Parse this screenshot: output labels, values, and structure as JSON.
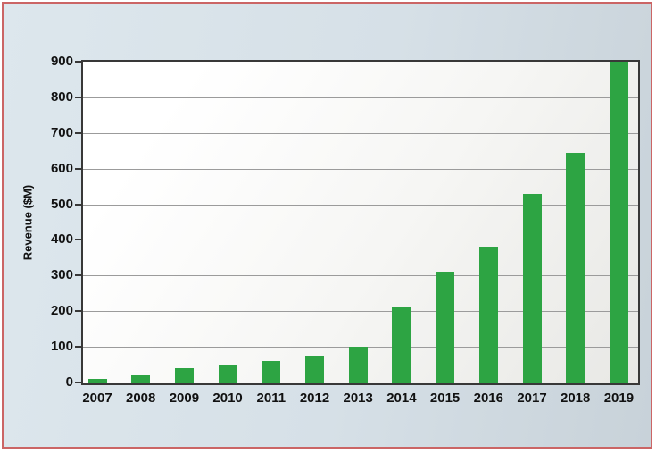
{
  "chart_data": {
    "type": "bar",
    "title": "",
    "ylabel": "Revenue ($M)",
    "xlabel": "",
    "categories": [
      "2007",
      "2008",
      "2009",
      "2010",
      "2011",
      "2012",
      "2013",
      "2014",
      "2015",
      "2016",
      "2017",
      "2018",
      "2019"
    ],
    "values": [
      10,
      20,
      40,
      50,
      60,
      75,
      100,
      210,
      310,
      380,
      530,
      645,
      900
    ],
    "ylim": [
      0,
      900
    ],
    "yticks": [
      0,
      100,
      200,
      300,
      400,
      500,
      600,
      700,
      800,
      900
    ],
    "grid": "horizontal",
    "legend": "none",
    "colors": {
      "bar": "#2da443",
      "plot_frame": "#383838",
      "gridline": "#9b9b9b",
      "panel_background": "#d9e3ea",
      "panel_border": "#cb6565",
      "text": "#111111"
    }
  }
}
